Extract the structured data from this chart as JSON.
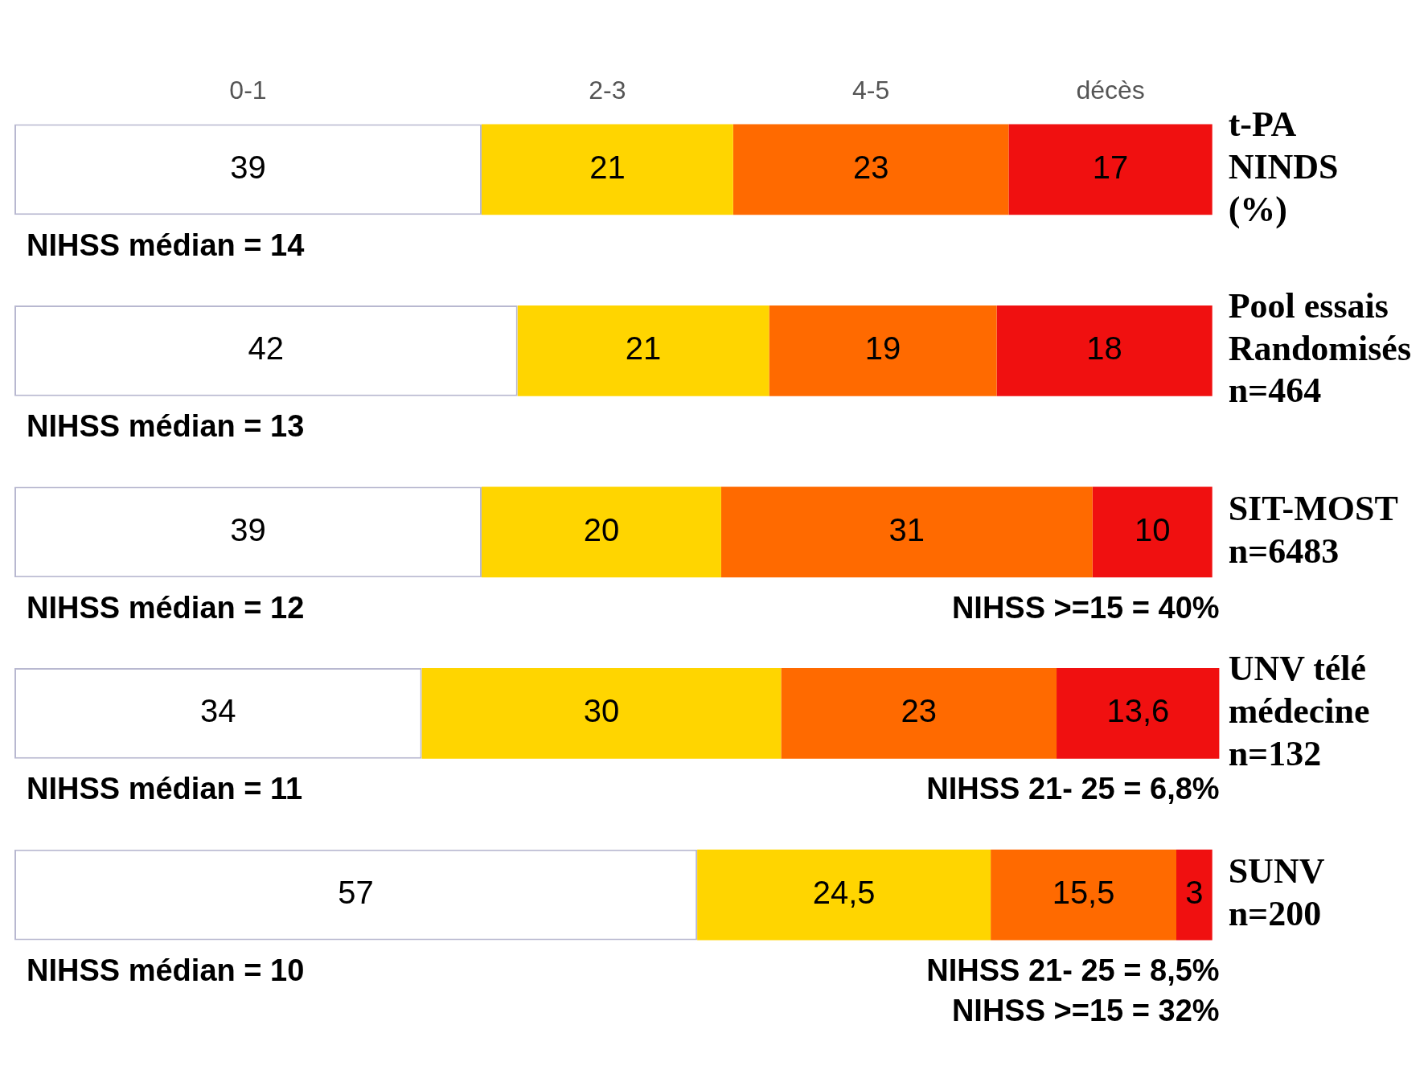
{
  "chart_data": {
    "type": "bar",
    "orientation": "horizontal",
    "stacked": true,
    "categories": [
      "t-PA\nNINDS\n(%)",
      "Pool essais\nRandomisés\nn=464",
      "SIT-MOST\nn=6483",
      "UNV télé\nmédecine\nn=132",
      "SUNV\nn=200"
    ],
    "series": [
      {
        "name": "0-1",
        "color": "#ffffff",
        "values": [
          39,
          42,
          39,
          34,
          57
        ],
        "value_labels": [
          "39",
          "42",
          "39",
          "34",
          "57"
        ]
      },
      {
        "name": "2-3",
        "color": "#ffd500",
        "values": [
          21,
          21,
          20,
          30,
          24.5
        ],
        "value_labels": [
          "21",
          "21",
          "20",
          "30",
          "24,5"
        ]
      },
      {
        "name": "4-5",
        "color": "#ff6a00",
        "values": [
          23,
          19,
          31,
          23,
          15.5
        ],
        "value_labels": [
          "23",
          "19",
          "31",
          "23",
          "15,5"
        ]
      },
      {
        "name": "décès",
        "color": "#f01010",
        "values": [
          17,
          18,
          10,
          13.6,
          3
        ],
        "value_labels": [
          "17",
          "18",
          "10",
          "13,6",
          "3"
        ]
      }
    ],
    "annotations": [
      "NIHSS médian = 14",
      "NIHSS médian = 13",
      "NIHSS médian = 12",
      "NIHSS >=15 = 40%",
      "NIHSS médian = 11",
      "NIHSS 21- 25 = 6,8%",
      "NIHSS médian = 10",
      "NIHSS 21- 25 = 8,5%",
      "NIHSS >=15 = 32%"
    ]
  }
}
